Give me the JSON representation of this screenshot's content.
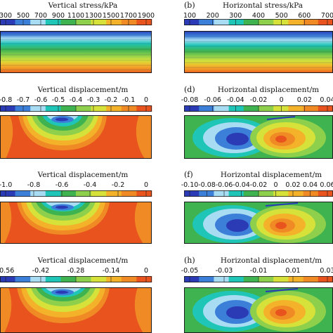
{
  "colors": {
    "scale": [
      "#2a3bb5",
      "#3c7fd9",
      "#a8dcf2",
      "#1fc5b6",
      "#3fb34f",
      "#8ed04c",
      "#d6e23a",
      "#f4b22a",
      "#f08a25",
      "#e8531e"
    ],
    "frame": "#1a1a1a",
    "background": "#ffffff"
  },
  "panels": [
    {
      "label": "",
      "title": "Vertical stress/kPa",
      "ticks": [
        "300",
        "500",
        "700",
        "900",
        "1100",
        "1300",
        "1500",
        "1700",
        "1900"
      ],
      "kind": "stress-vertical"
    },
    {
      "label": "(b)",
      "title": "Horizontal stress/kPa",
      "ticks": [
        "100",
        "200",
        "300",
        "400",
        "500",
        "600",
        "700"
      ],
      "kind": "stress-horizontal"
    },
    {
      "label": "",
      "title": "Vertical displacement/m",
      "ticks": [
        "-0.8",
        "-0.7",
        "-0.6",
        "-0.5",
        "-0.4",
        "-0.3",
        "-0.2",
        "-0.1",
        "0"
      ],
      "kind": "disp-vertical"
    },
    {
      "label": "(d)",
      "title": "Horizontal displacement/m",
      "ticks": [
        "-0.08",
        "-0.06",
        "-0.04",
        "-0.02",
        "0",
        "0.02",
        "0.04"
      ],
      "kind": "disp-horizontal"
    },
    {
      "label": "",
      "title": "Vertical displacement/m",
      "ticks": [
        "-1.0",
        "-0.8",
        "-0.6",
        "-0.4",
        "-0.2",
        "0"
      ],
      "kind": "disp-vertical"
    },
    {
      "label": "(f)",
      "title": "Horizontal displacement/m",
      "ticks": [
        "-0.10",
        "-0.08",
        "-0.06",
        "-0.04",
        "-0.02",
        "0",
        "0.02",
        "0.04",
        "0.06"
      ],
      "kind": "disp-horizontal"
    },
    {
      "label": "",
      "title": "Vertical displacement/m",
      "ticks": [
        "-0.56",
        "-0.42",
        "-0.28",
        "-0.14",
        "0"
      ],
      "kind": "disp-vertical"
    },
    {
      "label": "(h)",
      "title": "Horizontal displacement/m",
      "ticks": [
        "-0.05",
        "-0.03",
        "-0.01",
        "0.01",
        "0.03"
      ],
      "kind": "disp-horizontal"
    }
  ]
}
